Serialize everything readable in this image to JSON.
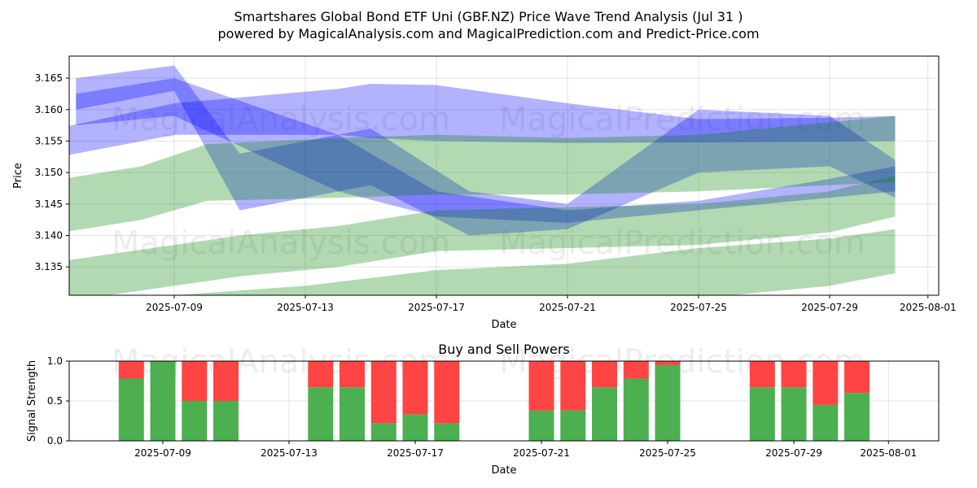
{
  "title_line1": "Smartshares Global Bond ETF Uni (GBF.NZ) Price Wave Trend Analysis (Jul 31 )",
  "title_line2": "powered by MagicalAnalysis.com and MagicalPrediction.com and Predict-Price.com",
  "watermarks": {
    "left": "MagicalAnalysis.com",
    "right": "MagicalPrediction.com"
  },
  "colors": {
    "blue_band": "#0000ff",
    "green_band": "#008000",
    "buy": "#4caf50",
    "sell": "#ff4444"
  },
  "chart_data": [
    {
      "type": "area",
      "xlabel": "Date",
      "ylabel": "Price",
      "xlim": [
        "2025-07-05",
        "2025-08-01"
      ],
      "ylim": [
        3.1305,
        3.1685
      ],
      "x_ticks": [
        "2025-07-09",
        "2025-07-13",
        "2025-07-17",
        "2025-07-21",
        "2025-07-25",
        "2025-07-29",
        "2025-08-01"
      ],
      "y_ticks": [
        "3.135",
        "3.140",
        "3.145",
        "3.150",
        "3.155",
        "3.160",
        "3.165"
      ],
      "grid": true,
      "series": [
        {
          "color": "blue",
          "bands": [
            {
              "x": [
                "2025-07-05",
                "2025-07-09",
                "2025-07-14",
                "2025-07-15",
                "2025-07-17",
                "2025-07-21",
                "2025-07-25",
                "2025-07-29",
                "2025-07-31"
              ],
              "upper": [
                3.1565,
                3.161,
                3.1633,
                3.1641,
                3.1639,
                3.161,
                3.1585,
                3.1587,
                3.159
              ],
              "lower": [
                3.152,
                3.156,
                3.156,
                3.1555,
                3.155,
                3.1547,
                3.1548,
                3.1549,
                3.155
              ]
            },
            {
              "x": [
                "2025-07-06",
                "2025-07-09",
                "2025-07-14",
                "2025-07-17",
                "2025-07-21",
                "2025-07-25",
                "2025-07-29",
                "2025-07-31"
              ],
              "upper": [
                3.1625,
                3.165,
                3.156,
                3.147,
                3.144,
                3.1455,
                3.149,
                3.151
              ],
              "lower": [
                3.1575,
                3.159,
                3.147,
                3.143,
                3.142,
                3.144,
                3.146,
                3.147
              ]
            },
            {
              "x": [
                "2025-07-06",
                "2025-07-09",
                "2025-07-11",
                "2025-07-15",
                "2025-07-18",
                "2025-07-21",
                "2025-07-25",
                "2025-07-29",
                "2025-07-31"
              ],
              "upper": [
                3.165,
                3.167,
                3.153,
                3.157,
                3.147,
                3.145,
                3.16,
                3.159,
                3.152
              ],
              "lower": [
                3.16,
                3.163,
                3.144,
                3.148,
                3.14,
                3.141,
                3.15,
                3.151,
                3.146
              ]
            }
          ]
        },
        {
          "color": "green",
          "bands": [
            {
              "x": [
                "2025-07-05",
                "2025-07-08",
                "2025-07-10",
                "2025-07-14",
                "2025-07-17",
                "2025-07-21",
                "2025-07-25",
                "2025-07-29",
                "2025-07-31"
              ],
              "upper": [
                3.1485,
                3.151,
                3.1545,
                3.1555,
                3.156,
                3.1555,
                3.156,
                3.158,
                3.159
              ],
              "lower": [
                3.14,
                3.1425,
                3.1455,
                3.146,
                3.1465,
                3.1465,
                3.147,
                3.148,
                3.1485
              ]
            },
            {
              "x": [
                "2025-07-05",
                "2025-07-09",
                "2025-07-11",
                "2025-07-14",
                "2025-07-17",
                "2025-07-21",
                "2025-07-25",
                "2025-07-29",
                "2025-07-31"
              ],
              "upper": [
                3.1355,
                3.1385,
                3.14,
                3.1415,
                3.144,
                3.1445,
                3.145,
                3.147,
                3.1495
              ]
            },
            {
              "x": [
                "2025-07-05",
                "2025-07-09",
                "2025-07-13",
                "2025-07-17",
                "2025-07-21",
                "2025-07-25",
                "2025-07-29",
                "2025-07-31"
              ],
              "upper": [
                3.13,
                3.1305,
                3.132,
                3.1345,
                3.1355,
                3.138,
                3.1395,
                3.141
              ],
              "lower": [
                3.125,
                3.125,
                3.126,
                3.128,
                3.129,
                3.13,
                3.132,
                3.134
              ]
            }
          ]
        }
      ]
    },
    {
      "type": "bar",
      "title": "Buy and Sell Powers",
      "xlabel": "Date",
      "ylabel": "Signal Strength",
      "ylim": [
        0,
        1.0
      ],
      "y_ticks": [
        "0.0",
        "0.5",
        "1.0"
      ],
      "x_ticks": [
        "2025-07-09",
        "2025-07-13",
        "2025-07-17",
        "2025-07-21",
        "2025-07-25",
        "2025-07-29",
        "2025-08-01"
      ],
      "grid": true,
      "categories": [
        "2025-07-08",
        "2025-07-09",
        "2025-07-10",
        "2025-07-11",
        "2025-07-14",
        "2025-07-15",
        "2025-07-16",
        "2025-07-17",
        "2025-07-18",
        "2025-07-21",
        "2025-07-22",
        "2025-07-23",
        "2025-07-24",
        "2025-07-25",
        "2025-07-28",
        "2025-07-29",
        "2025-07-30",
        "2025-07-31"
      ],
      "buy": [
        0.78,
        1.0,
        0.5,
        0.5,
        0.67,
        0.67,
        0.22,
        0.33,
        0.22,
        0.38,
        0.38,
        0.67,
        0.78,
        0.95,
        0.67,
        0.67,
        0.45,
        0.6
      ]
    }
  ]
}
